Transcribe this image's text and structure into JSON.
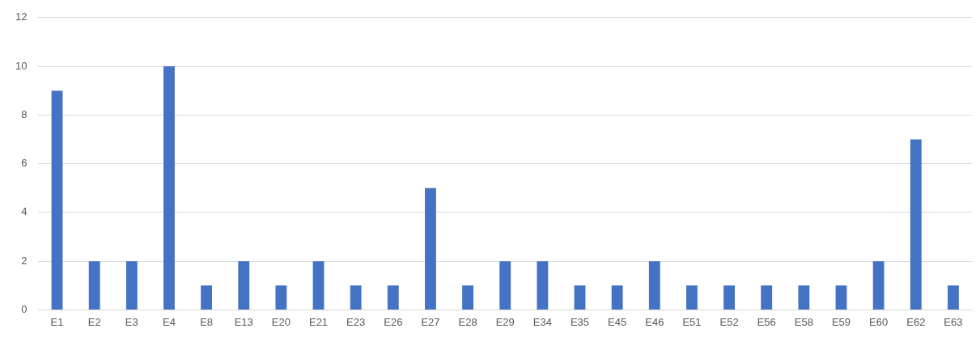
{
  "chart_data": {
    "type": "bar",
    "categories": [
      "E1",
      "E2",
      "E3",
      "E4",
      "E8",
      "E13",
      "E20",
      "E21",
      "E23",
      "E26",
      "E27",
      "E28",
      "E29",
      "E34",
      "E35",
      "E45",
      "E46",
      "E51",
      "E52",
      "E56",
      "E58",
      "E59",
      "E60",
      "E62",
      "E63"
    ],
    "values": [
      9,
      2,
      2,
      10,
      1,
      2,
      1,
      2,
      1,
      1,
      5,
      1,
      2,
      2,
      1,
      1,
      2,
      1,
      1,
      1,
      1,
      1,
      2,
      7,
      1
    ],
    "color": "#4472c4",
    "ylim": [
      0,
      12
    ],
    "yticks": [
      0,
      2,
      4,
      6,
      8,
      10,
      12
    ],
    "grid": "y"
  }
}
